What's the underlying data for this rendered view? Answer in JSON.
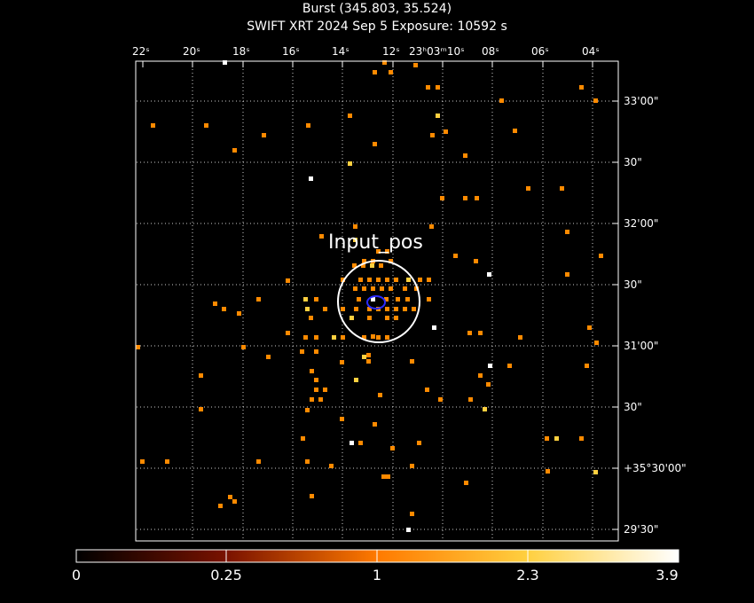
{
  "header": {
    "title": "Burst (345.803, 35.524)",
    "subtitle": "SWIFT XRT   2024 Sep  5    Exposure: 10592 s"
  },
  "ra_ticks": [
    "22ˢ",
    "20ˢ",
    "18ˢ",
    "16ˢ",
    "14ˢ",
    "12ˢ",
    "23ʰ03ᵐ10ˢ",
    "08ˢ",
    "06ˢ",
    "04ˢ"
  ],
  "dec_ticks": [
    "33'00\"",
    "30\"",
    "32'00\"",
    "30\"",
    "31'00\"",
    "30\"",
    "+35°30'00\"",
    "29'30\""
  ],
  "source_label": "Input_pos",
  "colorbar": {
    "labels": [
      "0",
      "0.25",
      "1",
      "2.3",
      "3.9"
    ]
  },
  "colors": {
    "background": "#000000",
    "photon_low": "#ff8a00",
    "photon_mid": "#ffb020",
    "photon_high": "#ffffff",
    "frame": "#ffffff",
    "region": "#ffffff",
    "source_marker": "#2b2bff"
  }
}
